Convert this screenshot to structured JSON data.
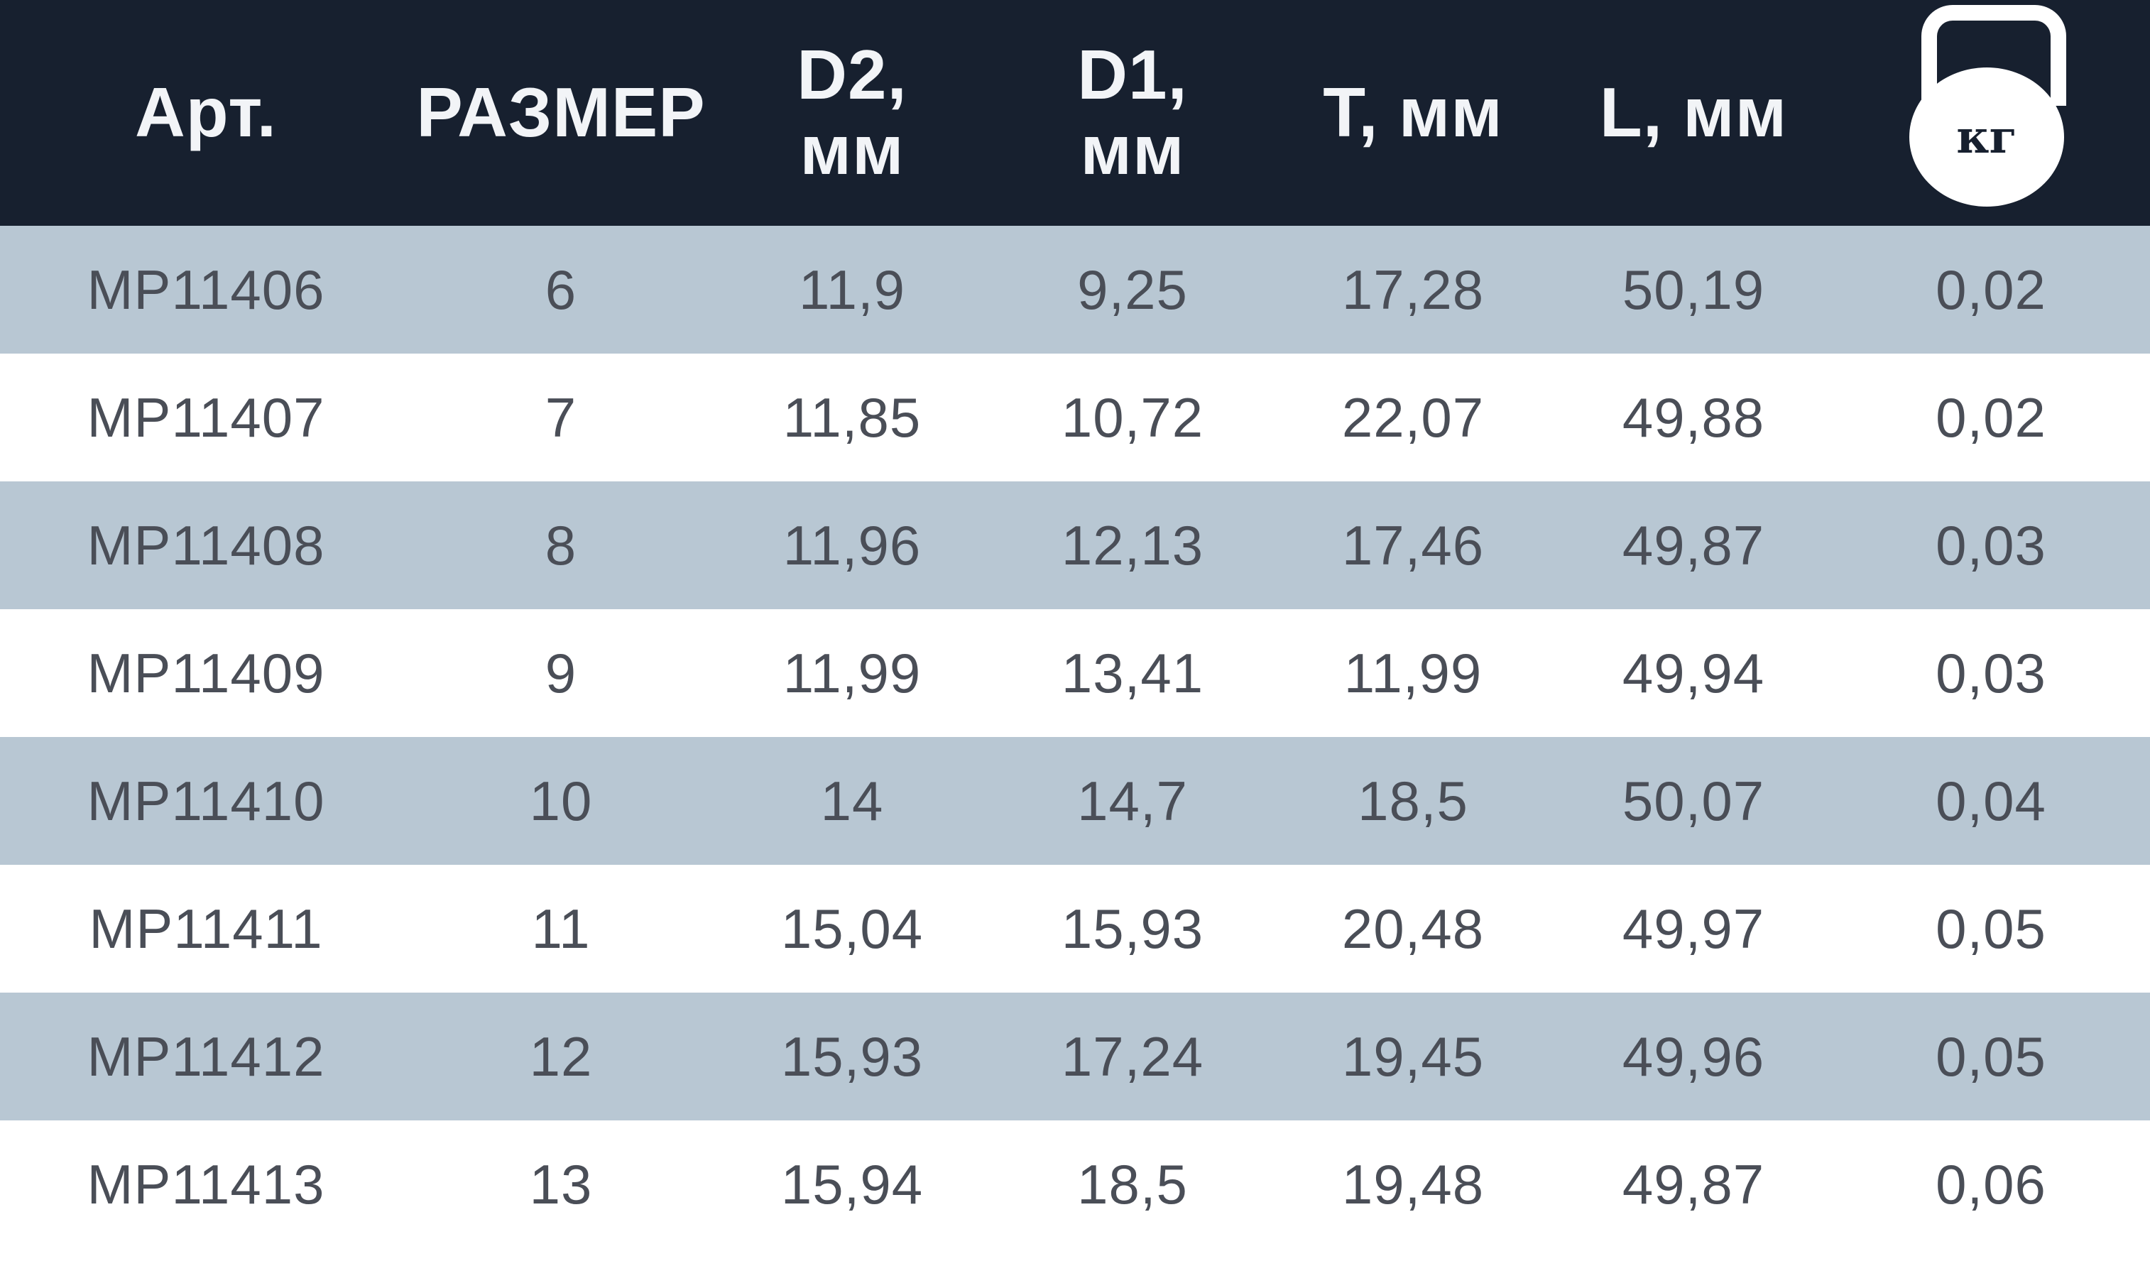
{
  "table": {
    "header": {
      "art": "Арт.",
      "size": "РАЗМЕР",
      "d2_line1": "D2,",
      "d2_line2": "мм",
      "d1_line1": "D1,",
      "d1_line2": "мм",
      "t": "T, мм",
      "l": "L, мм",
      "weight_unit": "кг"
    },
    "rows": [
      {
        "art": "MP11406",
        "size": "6",
        "d2": "11,9",
        "d1": "9,25",
        "t": "17,28",
        "l": "50,19",
        "kg": "0,02"
      },
      {
        "art": "MP11407",
        "size": "7",
        "d2": "11,85",
        "d1": "10,72",
        "t": "22,07",
        "l": "49,88",
        "kg": "0,02"
      },
      {
        "art": "MP11408",
        "size": "8",
        "d2": "11,96",
        "d1": "12,13",
        "t": "17,46",
        "l": "49,87",
        "kg": "0,03"
      },
      {
        "art": "MP11409",
        "size": "9",
        "d2": "11,99",
        "d1": "13,41",
        "t": "11,99",
        "l": "49,94",
        "kg": "0,03"
      },
      {
        "art": "MP11410",
        "size": "10",
        "d2": "14",
        "d1": "14,7",
        "t": "18,5",
        "l": "50,07",
        "kg": "0,04"
      },
      {
        "art": "MP11411",
        "size": "11",
        "d2": "15,04",
        "d1": "15,93",
        "t": "20,48",
        "l": "49,97",
        "kg": "0,05"
      },
      {
        "art": "MP11412",
        "size": "12",
        "d2": "15,93",
        "d1": "17,24",
        "t": "19,45",
        "l": "49,96",
        "kg": "0,05"
      },
      {
        "art": "MP11413",
        "size": "13",
        "d2": "15,94",
        "d1": "18,5",
        "t": "19,48",
        "l": "49,87",
        "kg": "0,06"
      }
    ]
  },
  "colors": {
    "header_bg": "#17202f",
    "header_text": "#f2f4f7",
    "row_shaded": "#b8c7d3",
    "row_plain": "#ffffff",
    "cell_text": "#4a4e57"
  },
  "icons": {
    "weight": "kettlebell-icon"
  }
}
